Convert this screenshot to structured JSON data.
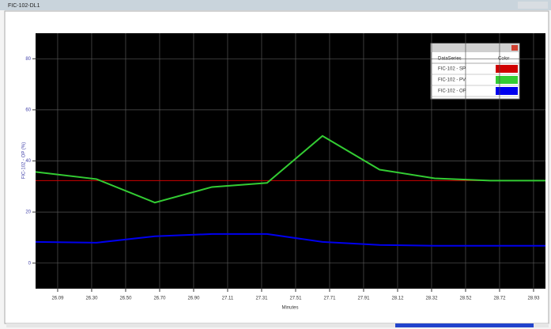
{
  "window_title": "FIC-102-DL1",
  "chart_data": {
    "type": "line",
    "ylabel": "FIC-102 - OP (%)",
    "xlabel": "Minutes",
    "xlim": [
      0,
      15
    ],
    "ylim": [
      -10,
      90
    ],
    "yticks": [
      0,
      20,
      40,
      60,
      80
    ],
    "xticks": [
      {
        "value": 0.65,
        "label": "26.09"
      },
      {
        "value": 1.65,
        "label": "26.30"
      },
      {
        "value": 2.65,
        "label": "26.50"
      },
      {
        "value": 3.65,
        "label": "26.70"
      },
      {
        "value": 4.65,
        "label": "26.90"
      },
      {
        "value": 5.65,
        "label": "27.11"
      },
      {
        "value": 6.65,
        "label": "27.31"
      },
      {
        "value": 7.65,
        "label": "27.51"
      },
      {
        "value": 8.65,
        "label": "27.71"
      },
      {
        "value": 9.65,
        "label": "27.91"
      },
      {
        "value": 10.65,
        "label": "28.12"
      },
      {
        "value": 11.65,
        "label": "28.32"
      },
      {
        "value": 12.65,
        "label": "28.52"
      },
      {
        "value": 13.65,
        "label": "28.72"
      },
      {
        "value": 14.65,
        "label": "28.93"
      }
    ],
    "grid": true,
    "x": [
      0,
      1.79,
      3.51,
      5.19,
      6.81,
      8.44,
      10.12,
      11.74,
      13.37,
      15
    ],
    "legend_header": [
      "DataSeries",
      "Color"
    ],
    "series": [
      {
        "name": "FIC-102 - SP",
        "color": "#d00000",
        "values": [
          32.3,
          32.3,
          32.3,
          32.3,
          32.3,
          32.3,
          32.3,
          32.3,
          32.3,
          32.3
        ]
      },
      {
        "name": "FIC-102 - PV",
        "color": "#33cc33",
        "values": [
          35.7,
          32.9,
          23.7,
          29.8,
          31.4,
          49.8,
          36.6,
          33.2,
          32.3,
          32.3
        ]
      },
      {
        "name": "FIC-102 - OP",
        "color": "#0000ee",
        "values": [
          8.3,
          8.0,
          10.5,
          11.4,
          11.4,
          8.3,
          7.1,
          6.8,
          6.8,
          6.8
        ]
      }
    ]
  }
}
